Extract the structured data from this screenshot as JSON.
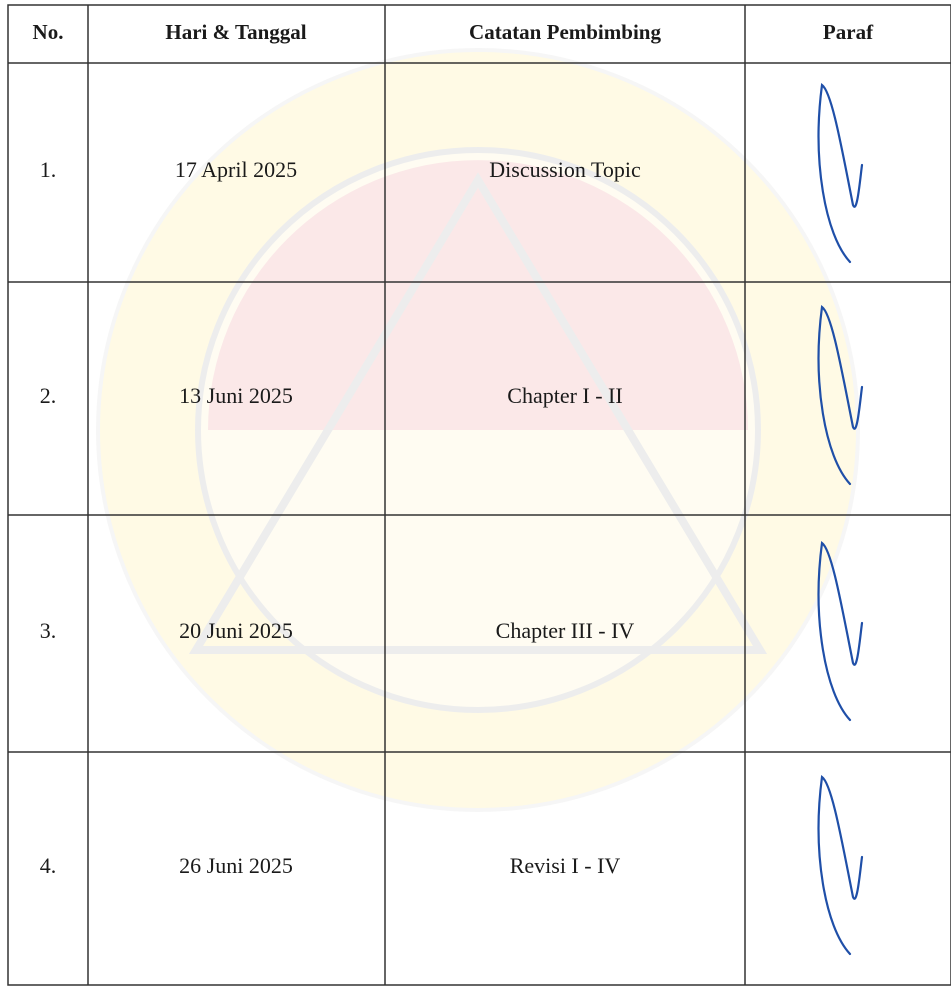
{
  "table": {
    "headers": [
      "No.",
      "Hari & Tanggal",
      "Catatan Pembimbing",
      "Paraf"
    ],
    "rows": [
      [
        "1.",
        "17 April 2025",
        "Discussion Topic"
      ],
      [
        "2.",
        "13 Juni 2025",
        "Chapter I - II"
      ],
      [
        "3.",
        "20 Juni 2025",
        "Chapter III - IV"
      ],
      [
        "4.",
        "26 Juni 2025",
        "Revisi I - IV"
      ]
    ]
  }
}
